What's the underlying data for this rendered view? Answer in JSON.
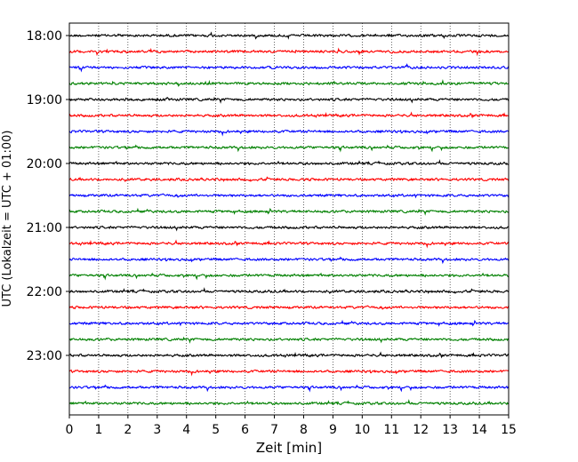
{
  "chart_data": {
    "type": "line",
    "title": "",
    "xlabel": "Zeit  [min]",
    "ylabel": "UTC (Lokalzeit = UTC + 01:00)",
    "xlim": [
      0,
      15
    ],
    "xticks": [
      "0",
      "1",
      "2",
      "3",
      "4",
      "5",
      "6",
      "7",
      "8",
      "9",
      "10",
      "11",
      "12",
      "13",
      "14",
      "15"
    ],
    "ytick_labels": [
      "18:00",
      "19:00",
      "20:00",
      "21:00",
      "22:00",
      "23:00"
    ],
    "trace_start_times": [
      "18:00",
      "18:15",
      "18:30",
      "18:45",
      "19:00",
      "19:15",
      "19:30",
      "19:45",
      "20:00",
      "20:15",
      "20:30",
      "20:45",
      "21:00",
      "21:15",
      "21:30",
      "21:45",
      "22:00",
      "22:15",
      "22:30",
      "22:45",
      "23:00",
      "23:15",
      "23:30",
      "23:45"
    ],
    "trace_minutes_per_line": 15,
    "color_cycle": [
      "#000000",
      "#ff0000",
      "#0000ff",
      "#008000"
    ],
    "grid": "x-dotted-vertical",
    "legend": "none"
  }
}
